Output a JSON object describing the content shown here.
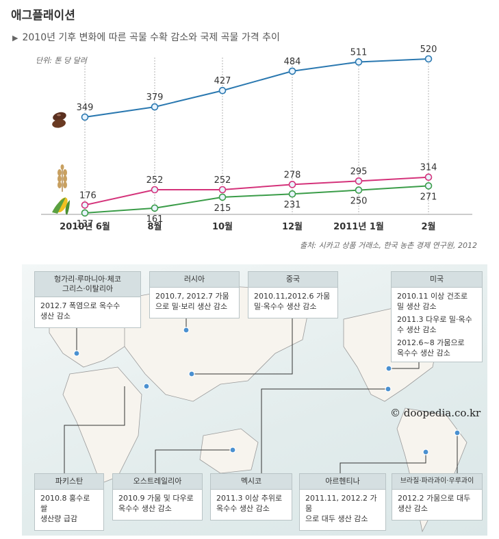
{
  "title": "애그플래이션",
  "subtitle": "2010년 기후 변화에 따른 곡물 수확 감소와 국제 곡물 가격 추이",
  "unit": "단위: 톤 당 달러",
  "source": "출처: 시카고 상품 거래소, 한국 농촌 경제 연구원, 2012",
  "credit": "© doopedia.co.kr",
  "chart_data": {
    "type": "line",
    "categories": [
      "2010년 6월",
      "8월",
      "10월",
      "12월",
      "2011년 1월",
      "2월"
    ],
    "series": [
      {
        "name": "soybean-icon",
        "color": "#2a78b0",
        "values": [
          349,
          379,
          427,
          484,
          511,
          520
        ]
      },
      {
        "name": "wheat-icon",
        "color": "#d4327a",
        "values": [
          176,
          252,
          252,
          278,
          295,
          314
        ]
      },
      {
        "name": "corn-icon",
        "color": "#3a9c48",
        "values": [
          137,
          161,
          215,
          231,
          250,
          271
        ]
      }
    ],
    "grid": "vertical dotted"
  },
  "map": {
    "boxes": [
      {
        "id": "hungary",
        "title": "헝가리·루마니아·체코\n그리스·이탈리아",
        "lines": [
          "2012.7 폭염으로 옥수수\n생산 감소"
        ]
      },
      {
        "id": "russia",
        "title": "러시아",
        "lines": [
          "2010.7, 2012.7 가뭄\n으로 밀·보리 생산 감소"
        ]
      },
      {
        "id": "china",
        "title": "중국",
        "lines": [
          "2010.11,2012.6 가뭄\n밀·옥수수 생산 감소"
        ]
      },
      {
        "id": "usa",
        "title": "미국",
        "lines": [
          "2010.11 이상 건조로\n밀 생산 감소",
          "2011.3 다우로 밀·옥수\n수 생산 감소",
          "2012.6~8 가뭄으로\n옥수수 생산 감소"
        ]
      },
      {
        "id": "pakistan",
        "title": "파키스탄",
        "lines": [
          "2010.8 홍수로 쌀\n생산량 급감"
        ]
      },
      {
        "id": "australia",
        "title": "오스트레일리아",
        "lines": [
          "2010.9 가뭄 및 다우로\n옥수수 생산 감소"
        ]
      },
      {
        "id": "mexico",
        "title": "멕시코",
        "lines": [
          "2011.3 이상 추위로\n옥수수 생산 감소"
        ]
      },
      {
        "id": "argentina",
        "title": "아르헨티나",
        "lines": [
          "2011.11, 2012.2 가뭄\n으로 대두 생산 감소"
        ]
      },
      {
        "id": "brazil",
        "title": "브라질·파라과이·우루과이",
        "lines": [
          "2012.2 가뭄으로 대두\n생산 감소"
        ]
      }
    ]
  }
}
